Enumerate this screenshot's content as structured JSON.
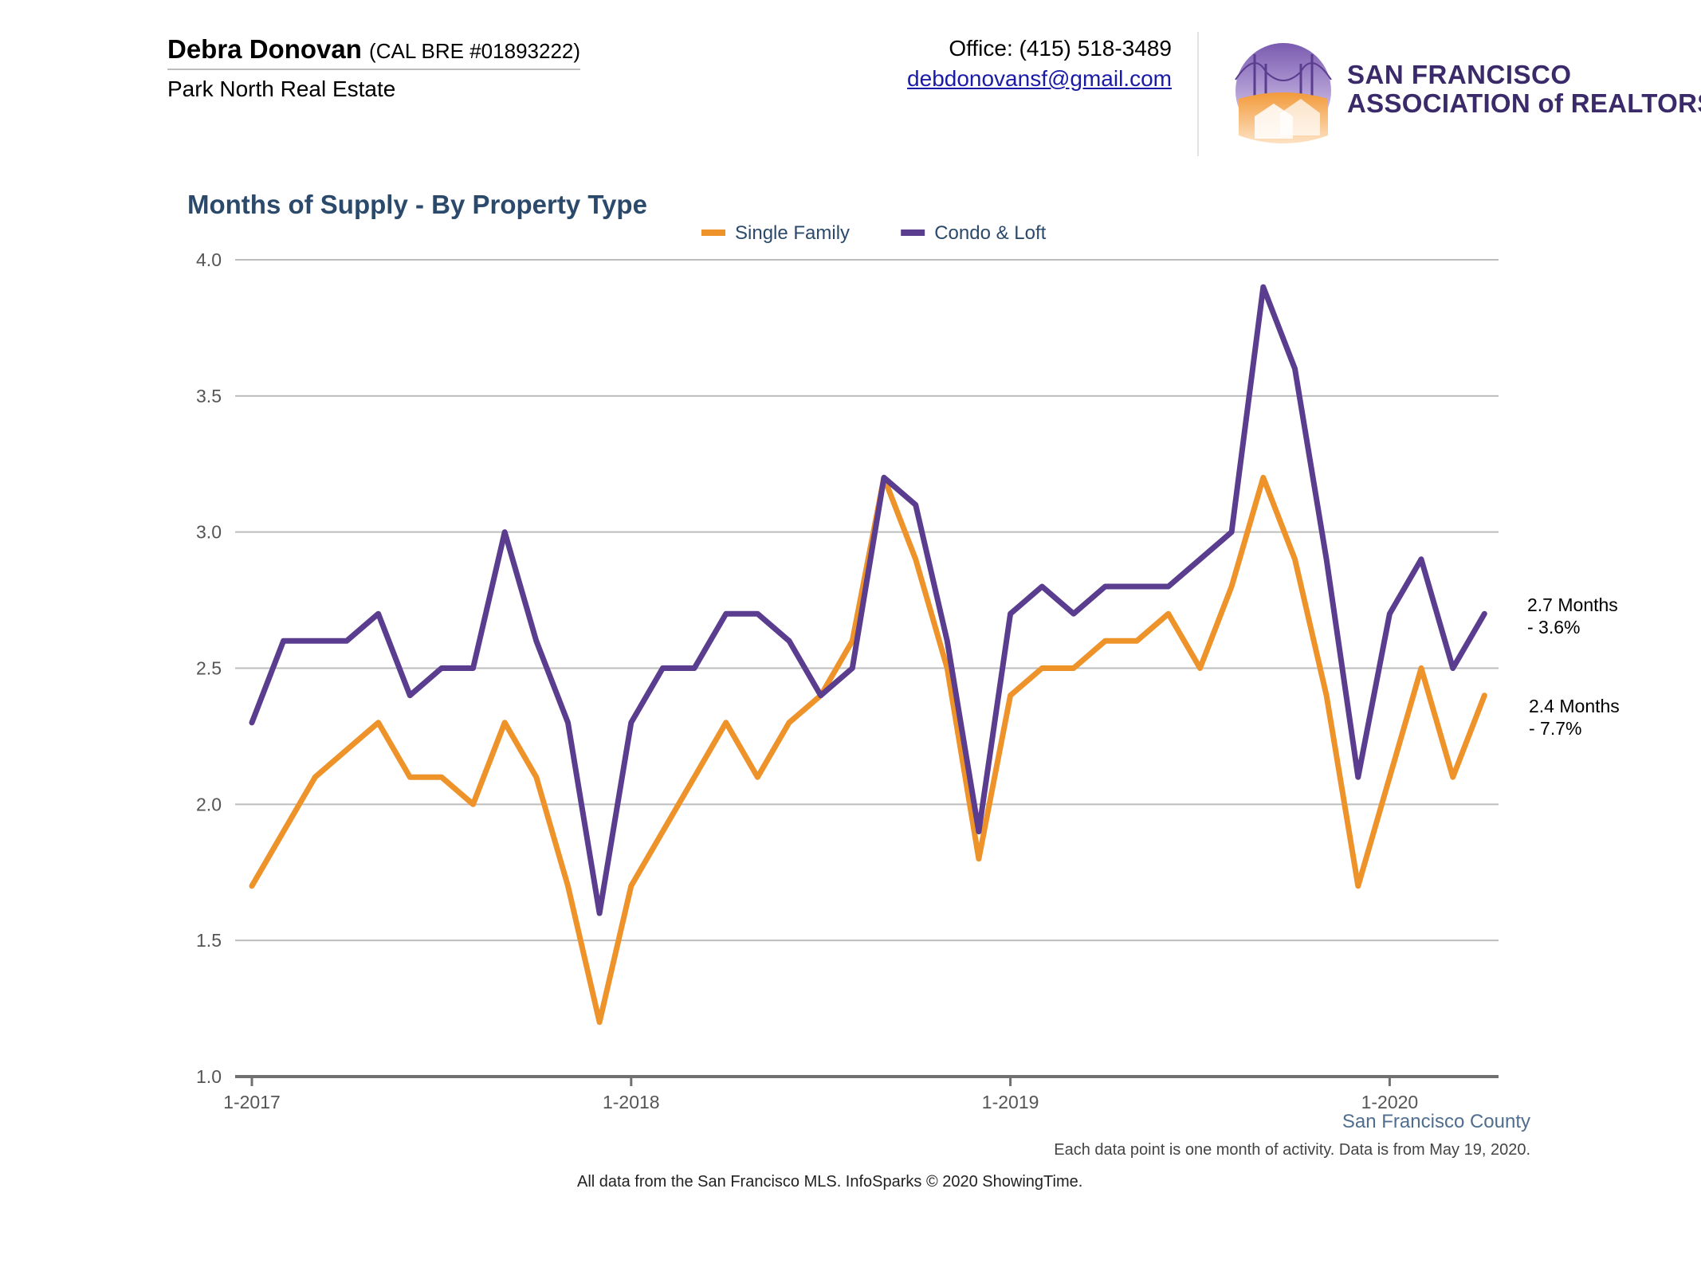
{
  "header": {
    "agent_name": "Debra Donovan",
    "agent_license": "(CAL BRE #01893222)",
    "brokerage": "Park North Real Estate",
    "office_phone": "Office: (415) 518-3489",
    "email": "debdonovansf@gmail.com"
  },
  "logo": {
    "line1": "SAN FRANCISCO",
    "line2": "ASSOCIATION of REALTORS®"
  },
  "footer": {
    "county": "San Francisco County",
    "note": "Each data point is one month of activity. Data is from May 19, 2020.",
    "source": "All data from the San Francisco MLS. InfoSparks © 2020 ShowingTime."
  },
  "colors": {
    "single_family": "#ee922a",
    "condo_loft": "#5a3d8e",
    "title": "#2b4a6b",
    "grid": "#bdbdbd",
    "axis": "#707070"
  },
  "chart_data": {
    "type": "line",
    "title": "Months of Supply - By Property Type",
    "xlabel": "",
    "ylabel": "",
    "ylim": [
      1.0,
      4.0
    ],
    "y_ticks": [
      "1.0",
      "1.5",
      "2.0",
      "2.5",
      "3.0",
      "3.5",
      "4.0"
    ],
    "x_ticks": [
      "1-2017",
      "1-2018",
      "1-2019",
      "1-2020"
    ],
    "grid": true,
    "legend_position": "top",
    "x": [
      "2017-01",
      "2017-02",
      "2017-03",
      "2017-04",
      "2017-05",
      "2017-06",
      "2017-07",
      "2017-08",
      "2017-09",
      "2017-10",
      "2017-11",
      "2017-12",
      "2018-01",
      "2018-02",
      "2018-03",
      "2018-04",
      "2018-05",
      "2018-06",
      "2018-07",
      "2018-08",
      "2018-09",
      "2018-10",
      "2018-11",
      "2018-12",
      "2019-01",
      "2019-02",
      "2019-03",
      "2019-04",
      "2019-05",
      "2019-06",
      "2019-07",
      "2019-08",
      "2019-09",
      "2019-10",
      "2019-11",
      "2019-12",
      "2020-01",
      "2020-02",
      "2020-03",
      "2020-04"
    ],
    "series": [
      {
        "name": "Single Family",
        "color": "#ee922a",
        "values": [
          1.7,
          1.9,
          2.1,
          2.2,
          2.3,
          2.1,
          2.1,
          2.0,
          2.3,
          2.1,
          1.7,
          1.2,
          1.7,
          1.9,
          2.1,
          2.3,
          2.1,
          2.3,
          2.4,
          2.6,
          3.2,
          2.9,
          2.5,
          1.8,
          2.4,
          2.5,
          2.5,
          2.6,
          2.6,
          2.7,
          2.5,
          2.8,
          3.2,
          2.9,
          2.4,
          1.7,
          2.1,
          2.5,
          2.1,
          2.4
        ],
        "end_label_value": "2.4 Months",
        "end_label_change": "- 7.7%"
      },
      {
        "name": "Condo & Loft",
        "color": "#5a3d8e",
        "values": [
          2.3,
          2.6,
          2.6,
          2.6,
          2.7,
          2.4,
          2.5,
          2.5,
          3.0,
          2.6,
          2.3,
          1.6,
          2.3,
          2.5,
          2.5,
          2.7,
          2.7,
          2.6,
          2.4,
          2.5,
          3.2,
          3.1,
          2.6,
          1.9,
          2.7,
          2.8,
          2.7,
          2.8,
          2.8,
          2.8,
          2.9,
          3.0,
          3.9,
          3.6,
          2.9,
          2.1,
          2.7,
          2.9,
          2.5,
          2.7
        ],
        "end_label_value": "2.7 Months",
        "end_label_change": "- 3.6%"
      }
    ]
  }
}
